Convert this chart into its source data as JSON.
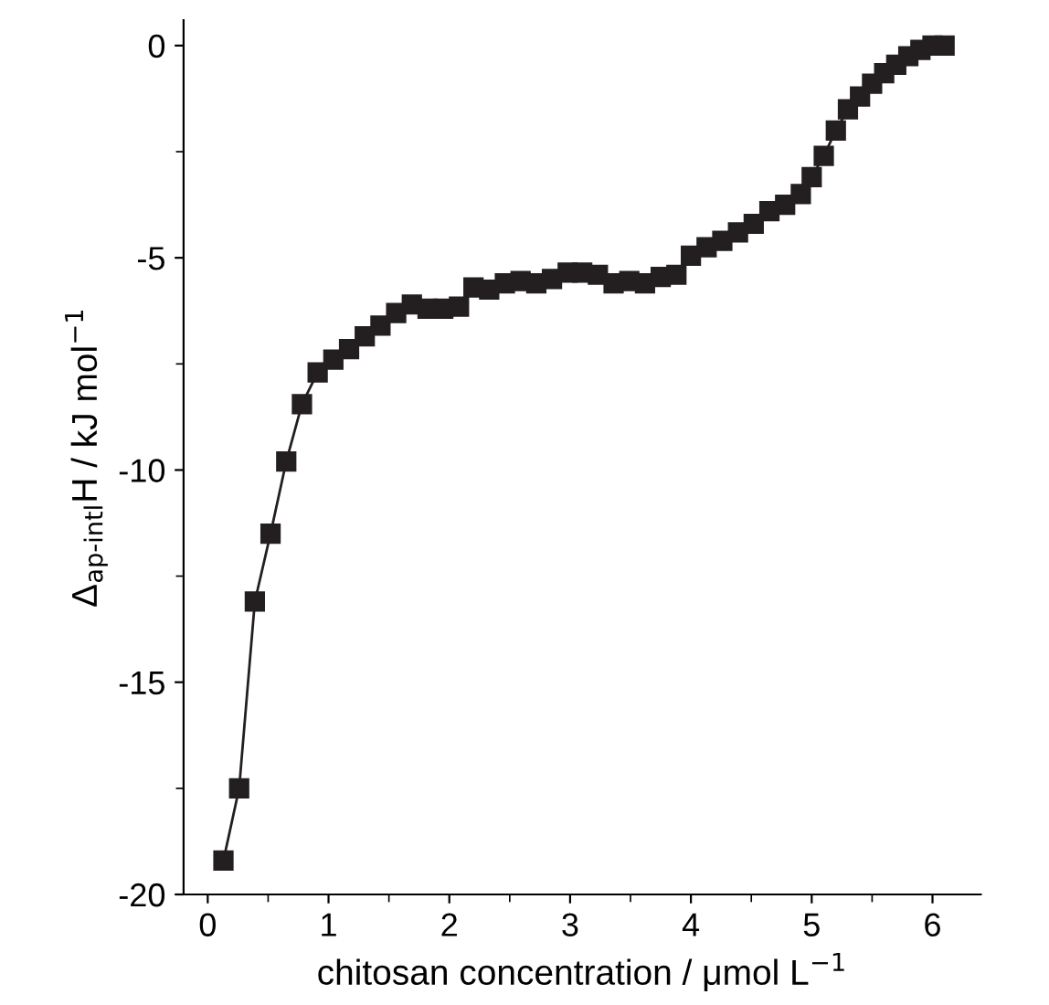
{
  "chart_data": {
    "type": "line",
    "xlabel": "chitosan concentration / μmol L$^{−1}$",
    "ylabel": "Δ$_{ap-intl}$H / kJ mol$^{−1}$",
    "xlim": [
      -0.2,
      6.4
    ],
    "ylim": [
      -20,
      0.6
    ],
    "xticks": [
      0,
      1,
      2,
      3,
      4,
      5,
      6
    ],
    "yticks": [
      -20,
      -15,
      -10,
      -5,
      0
    ],
    "marker": "square",
    "line_style": "solid",
    "grid": false,
    "legend": false,
    "series": [
      {
        "color": "#231f20",
        "x": [
          0.13,
          0.26,
          0.39,
          0.52,
          0.65,
          0.78,
          0.91,
          1.04,
          1.17,
          1.3,
          1.43,
          1.56,
          1.69,
          1.82,
          1.95,
          2.08,
          2.2,
          2.33,
          2.46,
          2.59,
          2.72,
          2.85,
          2.98,
          3.1,
          3.23,
          3.36,
          3.49,
          3.62,
          3.75,
          3.88,
          4.0,
          4.13,
          4.26,
          4.39,
          4.52,
          4.65,
          4.78,
          4.91,
          5.0,
          5.1,
          5.2,
          5.3,
          5.4,
          5.5,
          5.6,
          5.7,
          5.8,
          5.9,
          6.0,
          6.1
        ],
        "values": [
          -19.2,
          -17.5,
          -13.1,
          -11.5,
          -9.8,
          -8.45,
          -7.7,
          -7.4,
          -7.15,
          -6.85,
          -6.6,
          -6.3,
          -6.1,
          -6.2,
          -6.2,
          -6.15,
          -5.7,
          -5.75,
          -5.6,
          -5.55,
          -5.6,
          -5.5,
          -5.35,
          -5.35,
          -5.4,
          -5.6,
          -5.55,
          -5.6,
          -5.45,
          -5.4,
          -4.95,
          -4.75,
          -4.6,
          -4.4,
          -4.2,
          -3.9,
          -3.75,
          -3.5,
          -3.1,
          -2.6,
          -2.0,
          -1.5,
          -1.2,
          -0.9,
          -0.65,
          -0.45,
          -0.25,
          -0.1,
          0.0,
          0.0
        ]
      }
    ]
  }
}
